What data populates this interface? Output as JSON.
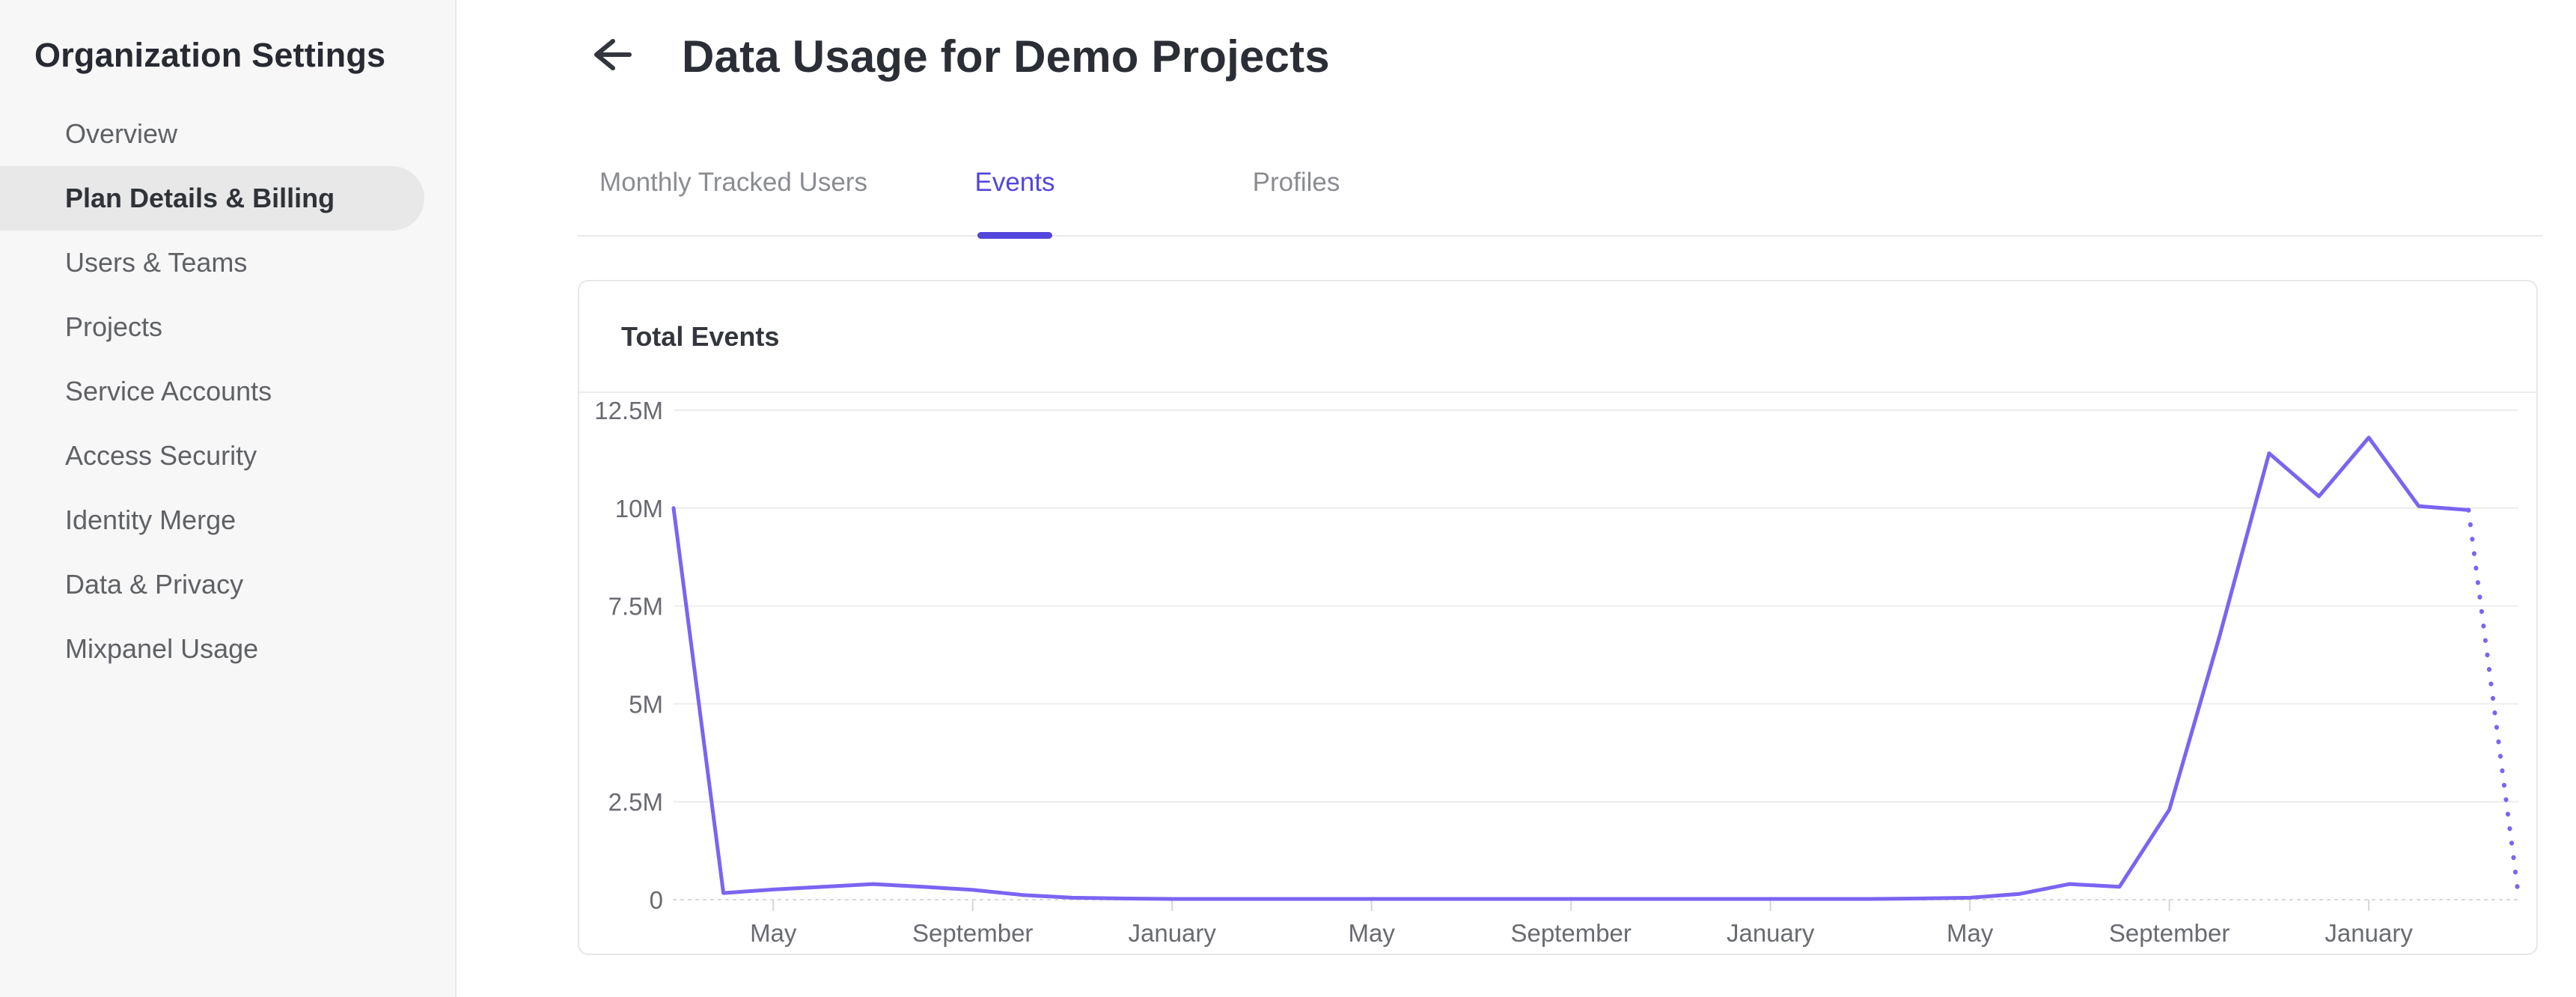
{
  "sidebar": {
    "title": "Organization Settings",
    "items": [
      {
        "label": "Overview",
        "active": false
      },
      {
        "label": "Plan Details & Billing",
        "active": true
      },
      {
        "label": "Users & Teams",
        "active": false
      },
      {
        "label": "Projects",
        "active": false
      },
      {
        "label": "Service Accounts",
        "active": false
      },
      {
        "label": "Access Security",
        "active": false
      },
      {
        "label": "Identity Merge",
        "active": false
      },
      {
        "label": "Data & Privacy",
        "active": false
      },
      {
        "label": "Mixpanel Usage",
        "active": false
      }
    ]
  },
  "header": {
    "back_icon": "left-arrow",
    "title": "Data Usage for Demo Projects"
  },
  "tabs": [
    {
      "label": "Monthly Tracked Users",
      "active": false
    },
    {
      "label": "Events",
      "active": true
    },
    {
      "label": "Profiles",
      "active": false
    }
  ],
  "card": {
    "title": "Total Events"
  },
  "colors": {
    "accent_purple": "#5246db",
    "line_purple": "#7b64f2",
    "sidebar_bg": "#f7f7f8",
    "pill_gray": "#e8e8e8",
    "grid_gray": "#ececec",
    "zero_line_gray": "#d6d6d6",
    "axis_label_gray": "#696b70"
  },
  "chart_data": {
    "type": "line",
    "title": "Total Events",
    "series": [
      {
        "name": "Total Events",
        "values_millions": [
          10.0,
          0.17,
          0.26,
          0.33,
          0.4,
          0.33,
          0.25,
          0.12,
          0.05,
          0.03,
          0.02,
          0.02,
          0.02,
          0.02,
          0.02,
          0.02,
          0.02,
          0.02,
          0.02,
          0.02,
          0.02,
          0.02,
          0.02,
          0.02,
          0.02,
          0.03,
          0.05,
          0.15,
          0.4,
          0.33,
          2.3,
          6.7,
          11.4,
          10.3,
          11.8,
          10.05,
          9.95,
          0.12
        ]
      }
    ],
    "x_tick_labels": [
      "May",
      "September",
      "January",
      "May",
      "September",
      "January",
      "May",
      "September",
      "January"
    ],
    "x_tick_indices": [
      2,
      6,
      10,
      14,
      18,
      22,
      26,
      30,
      34
    ],
    "dotted_tail_from_index": 36,
    "y_tick_labels": [
      "12.5M",
      "10M",
      "7.5M",
      "5M",
      "2.5M",
      "0"
    ],
    "y_tick_values_millions": [
      12.5,
      10,
      7.5,
      5,
      2.5,
      0
    ],
    "ylim_millions": [
      0,
      12.5
    ],
    "grid": true,
    "legend": "none"
  }
}
